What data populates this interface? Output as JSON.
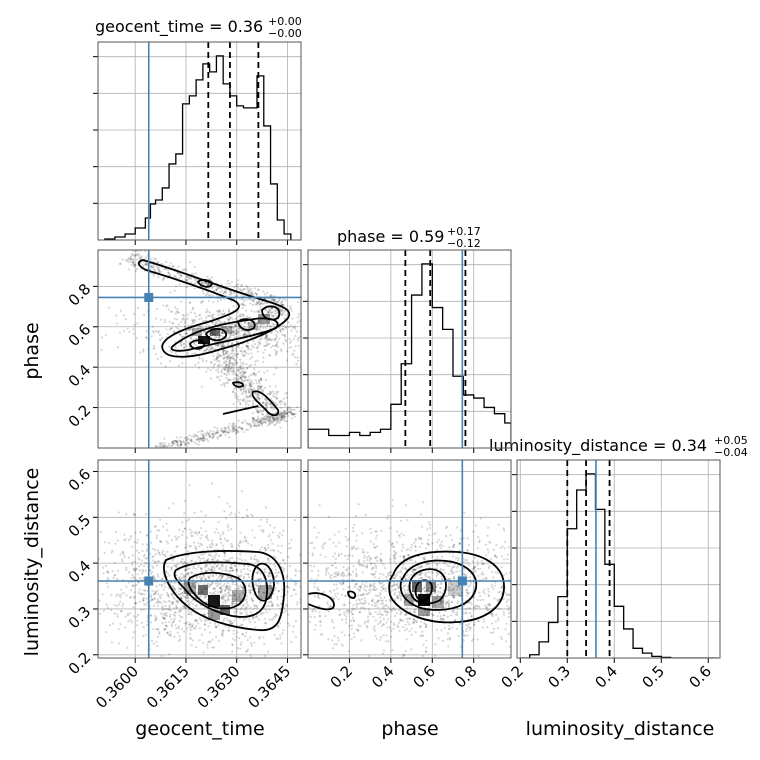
{
  "chart_data": {
    "type": "corner",
    "parameters": [
      "geocent_time",
      "phase",
      "luminosity_distance"
    ],
    "truth_color": "#4682b4",
    "titles": [
      {
        "param": "geocent_time",
        "text": "geocent_time = 0.36",
        "plus": "+0.00",
        "minus": "−0.00"
      },
      {
        "param": "phase",
        "text": "phase = 0.59",
        "plus": "+0.17",
        "minus": "−0.12"
      },
      {
        "param": "luminosity_distance",
        "text": "luminosity_distance = 0.34",
        "plus": "+0.05",
        "minus": "−0.04"
      }
    ],
    "truths": {
      "geocent_time": 0.3604,
      "phase": 0.745,
      "luminosity_distance": 0.361
    },
    "ranges": {
      "geocent_time": [
        0.3589,
        0.3649
      ],
      "phase": [
        0.0,
        0.98
      ],
      "luminosity_distance": [
        0.193,
        0.625
      ]
    },
    "ticks": {
      "geocent_time": {
        "values": [
          0.36,
          0.3615,
          0.363,
          0.3645
        ],
        "labels": [
          "0.3600",
          "0.3615",
          "0.3630",
          "0.3645"
        ]
      },
      "phase_y": {
        "values": [
          0.2,
          0.4,
          0.6,
          0.8
        ],
        "labels": [
          "0.2",
          "0.4",
          "0.6",
          "0.8"
        ]
      },
      "phase_x": {
        "values": [
          0.2,
          0.4,
          0.6,
          0.8
        ],
        "labels": [
          "0.2",
          "0.4",
          "0.6",
          "0.8"
        ]
      },
      "luminosity_distance_y": {
        "values": [
          0.2,
          0.3,
          0.4,
          0.5,
          0.6
        ],
        "labels": [
          "0.2",
          "0.3",
          "0.4",
          "0.5",
          "0.6"
        ]
      },
      "luminosity_distance_x": {
        "values": [
          0.2,
          0.3,
          0.4,
          0.5,
          0.6
        ],
        "labels": [
          "0.2",
          "0.3",
          "0.4",
          "0.5",
          "0.6"
        ]
      }
    },
    "quantiles": {
      "geocent_time": [
        0.36216,
        0.3628,
        0.36364
      ],
      "phase": [
        0.47,
        0.59,
        0.76
      ],
      "luminosity_distance": [
        0.3,
        0.34,
        0.39
      ]
    },
    "histograms": {
      "geocent_time": {
        "edges": [
          0.3591,
          0.3594,
          0.3597,
          0.36,
          0.3603,
          0.36045,
          0.3606,
          0.3608,
          0.361,
          0.3612,
          0.3614,
          0.3616,
          0.3618,
          0.362,
          0.3622,
          0.3624,
          0.3626,
          0.3628,
          0.363,
          0.3632,
          0.3634,
          0.3636,
          0.3638,
          0.364,
          0.3642,
          0.3644,
          0.3646
        ],
        "counts": [
          0.5,
          1.5,
          3,
          6,
          11,
          18,
          20,
          26,
          38,
          43,
          68,
          72,
          80,
          88,
          84,
          92,
          78,
          72,
          67,
          66,
          66,
          82,
          57,
          28,
          10,
          3
        ]
      },
      "phase": {
        "edges": [
          0.0,
          0.05,
          0.1,
          0.15,
          0.2,
          0.25,
          0.3,
          0.35,
          0.4,
          0.45,
          0.5,
          0.55,
          0.6,
          0.65,
          0.7,
          0.75,
          0.8,
          0.85,
          0.9,
          0.95,
          0.98
        ],
        "counts": [
          6,
          6,
          4,
          4,
          5,
          4,
          5,
          6,
          14,
          27,
          49,
          59,
          45,
          38,
          23,
          17,
          16,
          13,
          11,
          8
        ]
      },
      "luminosity_distance": {
        "edges": [
          0.2,
          0.22,
          0.24,
          0.26,
          0.28,
          0.3,
          0.32,
          0.34,
          0.36,
          0.38,
          0.4,
          0.42,
          0.44,
          0.46,
          0.48,
          0.5,
          0.52,
          0.54,
          0.56,
          0.58,
          0.6,
          0.62
        ],
        "counts": [
          0,
          1,
          5,
          11,
          19,
          40,
          52,
          57,
          46,
          29,
          16,
          9,
          3,
          1.5,
          0.5,
          0.2,
          0,
          0,
          0,
          0,
          0
        ]
      }
    }
  }
}
